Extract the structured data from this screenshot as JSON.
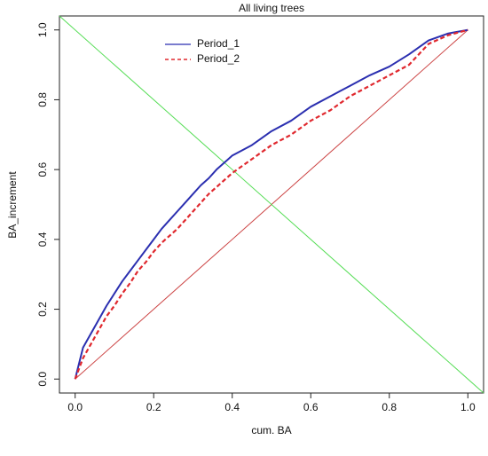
{
  "chart_data": {
    "type": "line",
    "title": "All living trees",
    "xlabel": "cum. BA",
    "ylabel": "BA_increment",
    "xlim": [
      -0.04,
      1.04
    ],
    "ylim": [
      -0.04,
      1.04
    ],
    "x_ticks": [
      "0.0",
      "0.2",
      "0.4",
      "0.6",
      "0.8",
      "1.0"
    ],
    "y_ticks": [
      "0.0",
      "0.2",
      "0.4",
      "0.6",
      "0.8",
      "1.0"
    ],
    "grid": false,
    "legend_position": "top-left",
    "series": [
      {
        "name": "Period_1",
        "color": "#2b2fb0",
        "style": "solid",
        "x": [
          0,
          0.02,
          0.04,
          0.06,
          0.08,
          0.1,
          0.12,
          0.14,
          0.16,
          0.18,
          0.2,
          0.22,
          0.24,
          0.26,
          0.28,
          0.3,
          0.32,
          0.34,
          0.36,
          0.38,
          0.4,
          0.45,
          0.5,
          0.55,
          0.6,
          0.65,
          0.7,
          0.75,
          0.8,
          0.85,
          0.9,
          0.95,
          1.0
        ],
        "y": [
          0,
          0.09,
          0.13,
          0.17,
          0.21,
          0.245,
          0.28,
          0.31,
          0.34,
          0.37,
          0.4,
          0.43,
          0.455,
          0.48,
          0.505,
          0.53,
          0.555,
          0.575,
          0.6,
          0.62,
          0.64,
          0.67,
          0.71,
          0.74,
          0.78,
          0.81,
          0.84,
          0.87,
          0.895,
          0.93,
          0.97,
          0.99,
          1.0
        ]
      },
      {
        "name": "Period_2",
        "color": "#e0282e",
        "style": "dashed",
        "x": [
          0,
          0.02,
          0.04,
          0.06,
          0.08,
          0.1,
          0.12,
          0.14,
          0.16,
          0.18,
          0.2,
          0.22,
          0.24,
          0.26,
          0.28,
          0.3,
          0.32,
          0.34,
          0.36,
          0.38,
          0.4,
          0.45,
          0.5,
          0.55,
          0.6,
          0.65,
          0.7,
          0.75,
          0.8,
          0.85,
          0.9,
          0.95,
          1.0
        ],
        "y": [
          0,
          0.06,
          0.1,
          0.14,
          0.18,
          0.21,
          0.245,
          0.275,
          0.31,
          0.335,
          0.365,
          0.39,
          0.41,
          0.43,
          0.455,
          0.48,
          0.505,
          0.53,
          0.55,
          0.57,
          0.59,
          0.63,
          0.67,
          0.7,
          0.74,
          0.77,
          0.81,
          0.84,
          0.87,
          0.9,
          0.96,
          0.985,
          1.0
        ]
      },
      {
        "name": "",
        "color": "#cc4444",
        "style": "thin",
        "x": [
          0,
          1
        ],
        "y": [
          0,
          1
        ]
      },
      {
        "name": "",
        "color": "#55dd55",
        "style": "thin",
        "x": [
          -0.04,
          1.04
        ],
        "y": [
          1.04,
          -0.04
        ]
      }
    ]
  }
}
